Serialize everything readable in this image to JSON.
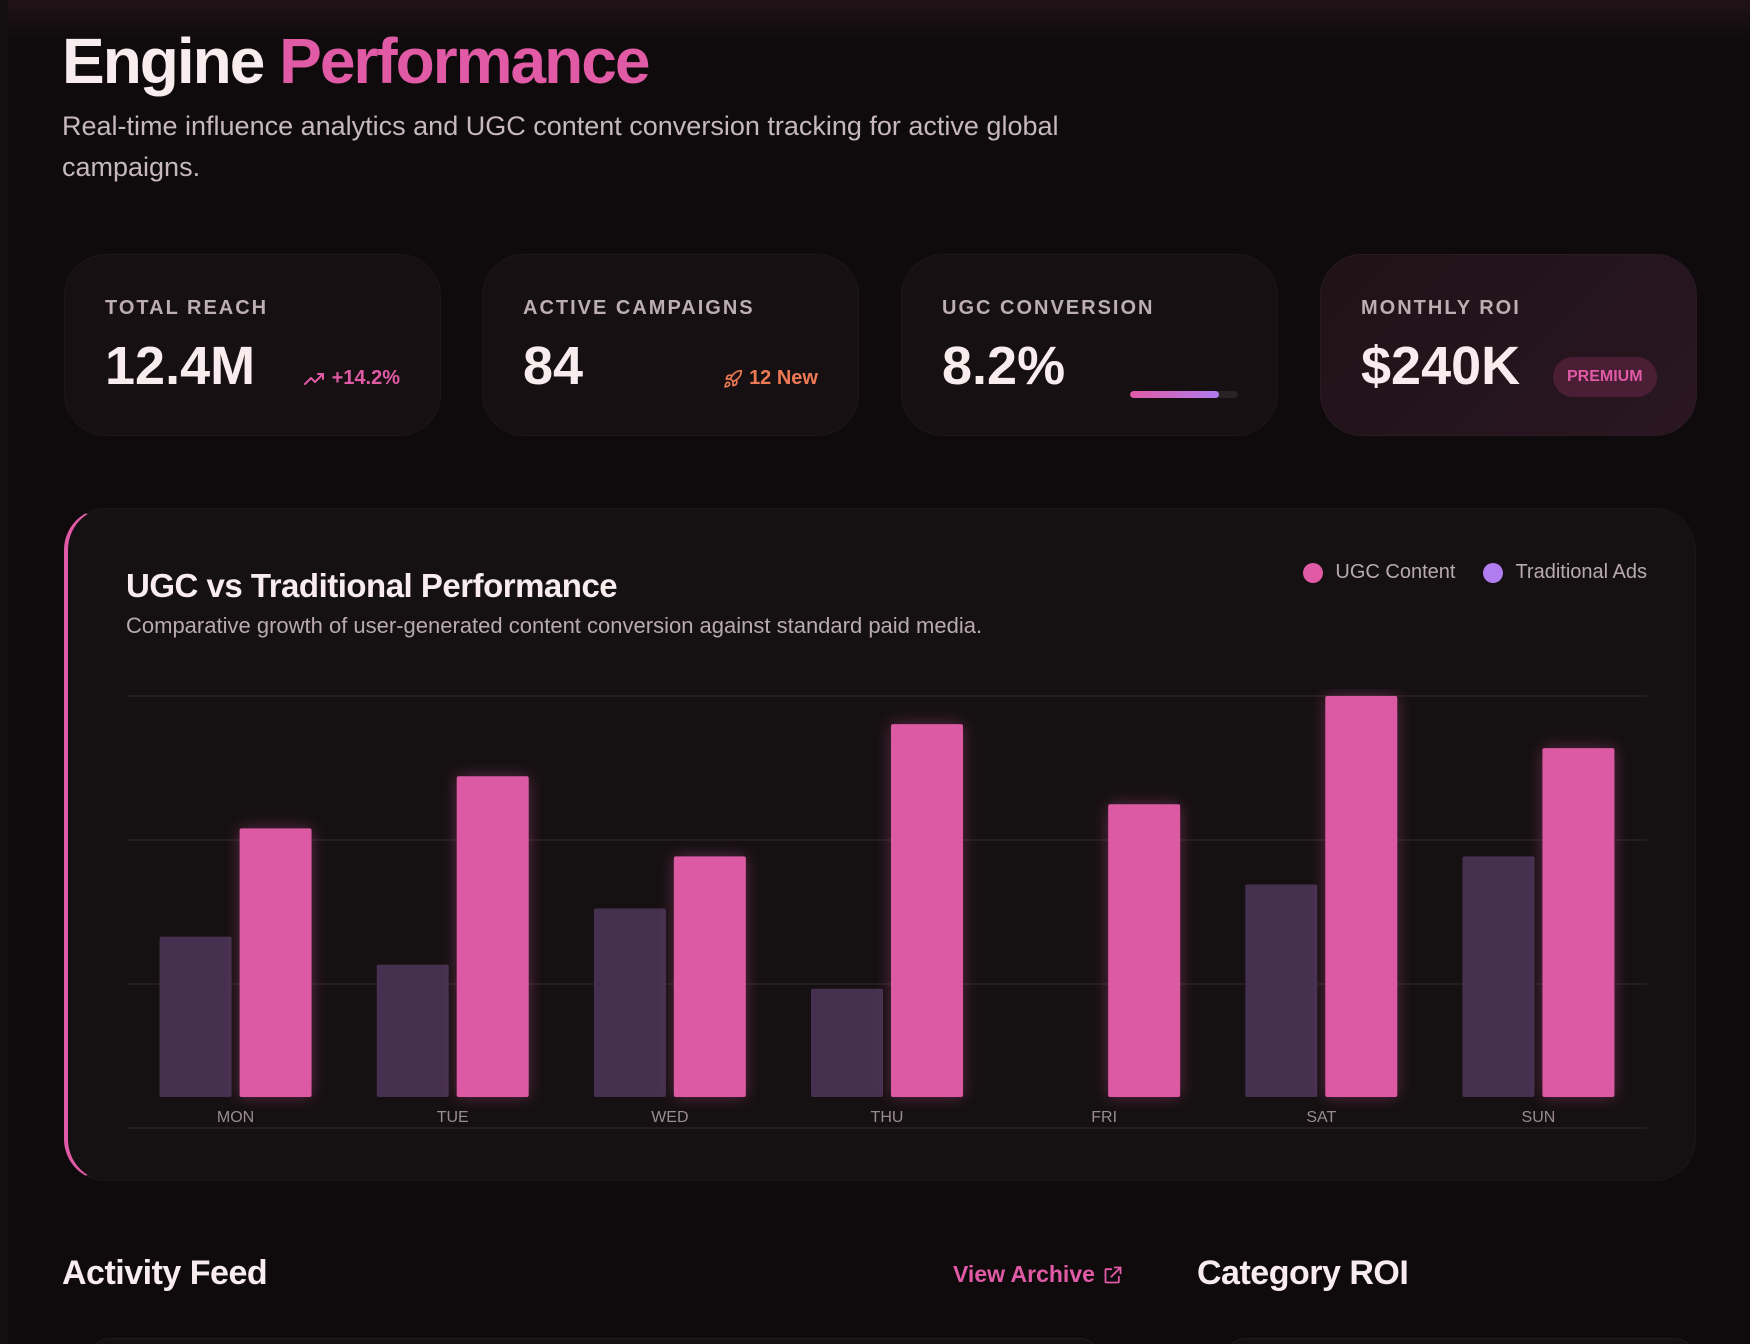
{
  "header": {
    "title_main": "Engine",
    "title_accent": "Performance",
    "subtitle": "Real-time influence analytics and UGC content conversion tracking for active global campaigns."
  },
  "stats": [
    {
      "label": "TOTAL REACH",
      "value": "12.4M",
      "badge": "+14.2%",
      "badge_icon": "trending-up-icon"
    },
    {
      "label": "ACTIVE CAMPAIGNS",
      "value": "84",
      "badge": "12 New",
      "badge_icon": "rocket-icon"
    },
    {
      "label": "UGC CONVERSION",
      "value": "8.2%",
      "progress_percent": 82
    },
    {
      "label": "MONTHLY ROI",
      "value": "$240K",
      "badge": "PREMIUM"
    }
  ],
  "colors": {
    "accent": "#e05aa5",
    "traditional": "#b07cf0",
    "traditional_bar": "#45304f",
    "new": "#ee7a55",
    "background": "#0f0b0c"
  },
  "chart_data": {
    "type": "bar",
    "title": "UGC vs Traditional Performance",
    "subtitle": "Comparative growth of user-generated content conversion against standard paid media.",
    "categories": [
      "MON",
      "TUE",
      "WED",
      "THU",
      "FRI",
      "SAT",
      "SUN"
    ],
    "series": [
      {
        "name": "Traditional Ads",
        "values": [
          40,
          33,
          47,
          27,
          0,
          53,
          60
        ]
      },
      {
        "name": "UGC Content",
        "values": [
          67,
          80,
          60,
          93,
          73,
          100,
          87
        ]
      }
    ],
    "ylim": [
      0,
      100
    ],
    "grid": true,
    "legend": "top-right"
  },
  "sections": {
    "activity_title": "Activity Feed",
    "archive_link": "View Archive",
    "category_title": "Category ROI"
  }
}
